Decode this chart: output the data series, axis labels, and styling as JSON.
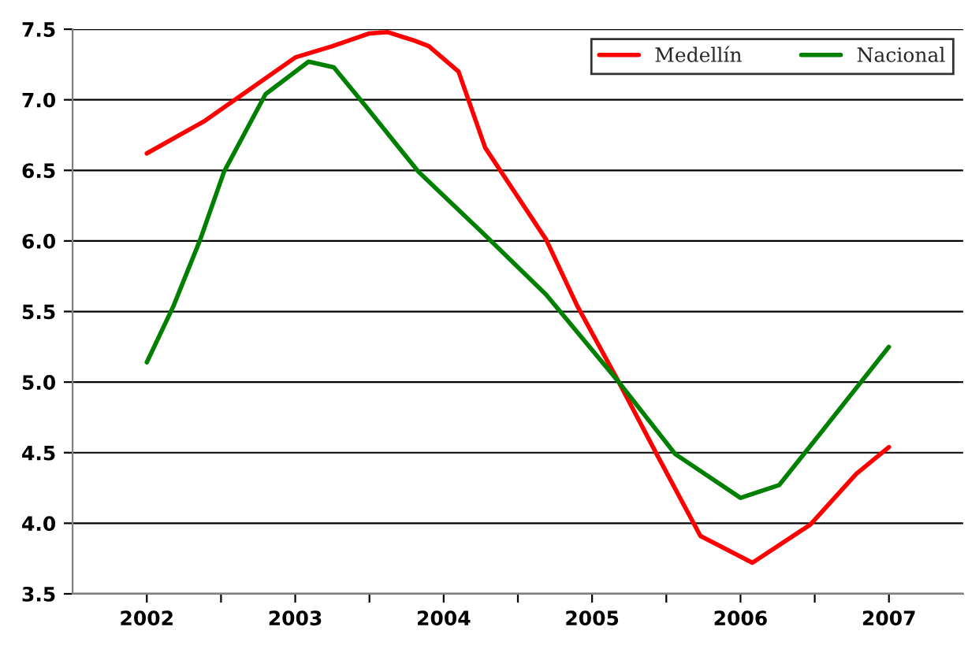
{
  "chart_data": {
    "type": "line",
    "series": [
      {
        "name": "Medellín",
        "color": "#ff0000",
        "x": [
          2002,
          2002.39,
          2003,
          2003.25,
          2003.5,
          2003.62,
          2003.8,
          2003.9,
          2004.1,
          2004.28,
          2004.69,
          2004.9,
          2005.18,
          2005.45,
          2005.73,
          2006.08,
          2006.47,
          2006.78,
          2007
        ],
        "values": [
          6.62,
          6.85,
          7.3,
          7.38,
          7.47,
          7.48,
          7.42,
          7.38,
          7.2,
          6.66,
          6.01,
          5.54,
          5.0,
          4.46,
          3.91,
          3.72,
          3.99,
          4.35,
          4.54
        ]
      },
      {
        "name": "Nacional",
        "color": "#008000",
        "x": [
          2002,
          2002.18,
          2002.36,
          2002.52,
          2002.8,
          2003.09,
          2003.26,
          2003.47,
          2003.83,
          2004.27,
          2004.69,
          2005.18,
          2005.56,
          2006,
          2006.26,
          2006.54,
          2007
        ],
        "values": [
          5.14,
          5.54,
          6.01,
          6.49,
          7.04,
          7.27,
          7.23,
          6.96,
          6.49,
          6.05,
          5.62,
          5.0,
          4.49,
          4.18,
          4.27,
          4.64,
          5.25
        ]
      }
    ],
    "xlim": [
      2001.5,
      2007.5
    ],
    "xticks": [
      2002,
      {
        "value": 2002.5,
        "label": null
      },
      2003,
      {
        "value": 2003.5,
        "label": null
      },
      2004,
      {
        "value": 2004.5,
        "label": null
      },
      2005,
      {
        "value": 2005.5,
        "label": null
      },
      2006,
      {
        "value": 2006.5,
        "label": null
      },
      2007
    ],
    "ylim": [
      3.5,
      7.5
    ],
    "yticks": [
      {
        "value": 3.5,
        "label": "3.5"
      },
      {
        "value": 4,
        "label": "4.0"
      },
      {
        "value": 4.5,
        "label": "4.5"
      },
      {
        "value": 5,
        "label": "5.0"
      },
      {
        "value": 5.5,
        "label": "5.5"
      },
      {
        "value": 6,
        "label": "6.0"
      },
      {
        "value": 6.5,
        "label": "6.5"
      },
      {
        "value": 7,
        "label": "7.0"
      },
      {
        "value": 7.5,
        "label": "7.5"
      }
    ],
    "grid": "y",
    "legend": "top right",
    "line_style": "solid",
    "marker": "none"
  }
}
